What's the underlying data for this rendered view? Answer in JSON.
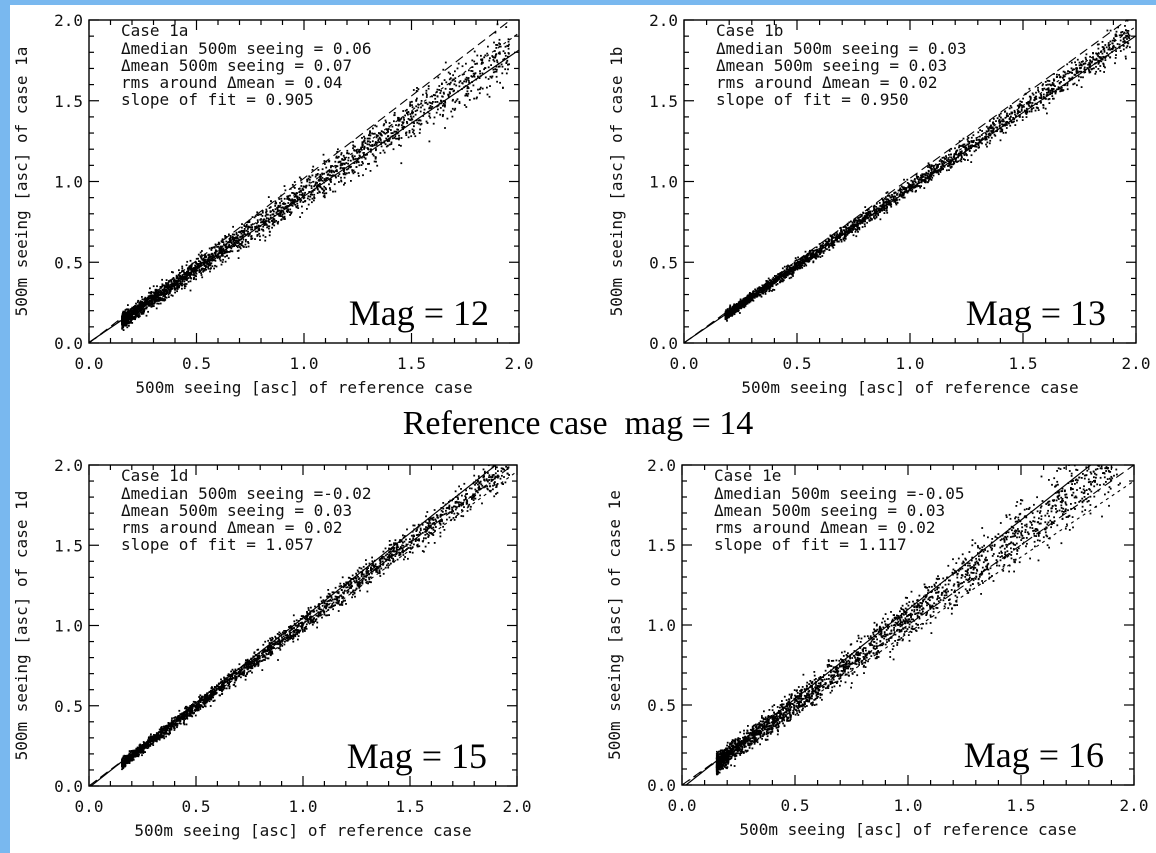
{
  "caption": "Reference case  mag = 14",
  "colors": {
    "band": "#79b8ef",
    "ink": "#000000",
    "background": "#ffffff"
  },
  "chart_data": [
    {
      "type": "scatter",
      "case_label": "Case 1a",
      "annotations": [
        "Δmedian 500m seeing = 0.06",
        "Δmean 500m seeing = 0.07",
        "rms around Δmean = 0.04",
        "slope of fit = 0.905"
      ],
      "mag_label": "Mag = 12",
      "xlabel": "500m seeing [asc] of reference case",
      "ylabel": "500m seeing [asc] of case 1a",
      "xlim": [
        0,
        2
      ],
      "ylim": [
        0,
        2
      ],
      "xticks": [
        "0.0",
        "0.5",
        "1.0",
        "1.5",
        "2.0"
      ],
      "yticks": [
        "0.0",
        "0.5",
        "1.0",
        "1.5",
        "2.0"
      ],
      "fit": {
        "slope": 0.905,
        "intercept": 0.004
      },
      "cloud": {
        "slope": 0.93,
        "spread": 0.035,
        "x_start": 0.15,
        "x_end": 1.95
      },
      "guide_slopes": [
        1.02,
        0.96
      ],
      "grid": false
    },
    {
      "type": "scatter",
      "case_label": "Case 1b",
      "annotations": [
        "Δmedian 500m seeing = 0.03",
        "Δmean 500m seeing = 0.03",
        "rms around Δmean = 0.02",
        "slope of fit = 0.950"
      ],
      "mag_label": "Mag = 13",
      "xlabel": "500m seeing [asc] of reference case",
      "ylabel": "500m seeing [asc] of case 1b",
      "xlim": [
        0,
        2
      ],
      "ylim": [
        0,
        2
      ],
      "xticks": [
        "0.0",
        "0.5",
        "1.0",
        "1.5",
        "2.0"
      ],
      "yticks": [
        "0.0",
        "0.5",
        "1.0",
        "1.5",
        "2.0"
      ],
      "fit": {
        "slope": 0.95,
        "intercept": 0.002
      },
      "cloud": {
        "slope": 0.97,
        "spread": 0.02,
        "x_start": 0.18,
        "x_end": 1.97
      },
      "guide_slopes": [
        1.02,
        0.98
      ],
      "grid": false
    },
    {
      "type": "scatter",
      "case_label": "Case 1d",
      "annotations": [
        "Δmedian 500m seeing =-0.02",
        "Δmean 500m seeing = 0.03",
        "rms around Δmean = 0.02",
        "slope of fit = 1.057"
      ],
      "mag_label": "Mag = 15",
      "xlabel": "500m seeing [asc] of reference case",
      "ylabel": "500m seeing [asc] of case 1d",
      "xlim": [
        0,
        2
      ],
      "ylim": [
        0,
        2
      ],
      "xticks": [
        "0.0",
        "0.5",
        "1.0",
        "1.5",
        "2.0"
      ],
      "yticks": [
        "0.0",
        "0.5",
        "1.0",
        "1.5",
        "2.0"
      ],
      "fit": {
        "slope": 1.057,
        "intercept": -0.01
      },
      "cloud": {
        "slope": 1.03,
        "spread": 0.022,
        "x_start": 0.15,
        "x_end": 1.96
      },
      "guide_slopes": [
        1.01,
        0.98
      ],
      "grid": false
    },
    {
      "type": "scatter",
      "case_label": "Case 1e",
      "annotations": [
        "Δmedian 500m seeing =-0.05",
        "Δmean 500m seeing = 0.03",
        "rms around Δmean = 0.02",
        "slope of fit = 1.117"
      ],
      "mag_label": "Mag = 16",
      "xlabel": "500m seeing [asc] of reference case",
      "ylabel": "500m seeing [asc] of case 1e",
      "xlim": [
        0,
        2
      ],
      "ylim": [
        0,
        2
      ],
      "xticks": [
        "0.0",
        "0.5",
        "1.0",
        "1.5",
        "2.0"
      ],
      "yticks": [
        "0.0",
        "0.5",
        "1.0",
        "1.5",
        "2.0"
      ],
      "fit": {
        "slope": 1.117,
        "intercept": -0.02
      },
      "cloud": {
        "slope": 1.07,
        "spread": 0.045,
        "x_start": 0.15,
        "x_end": 1.95
      },
      "guide_slopes": [
        1.0,
        0.95
      ],
      "grid": false
    }
  ]
}
